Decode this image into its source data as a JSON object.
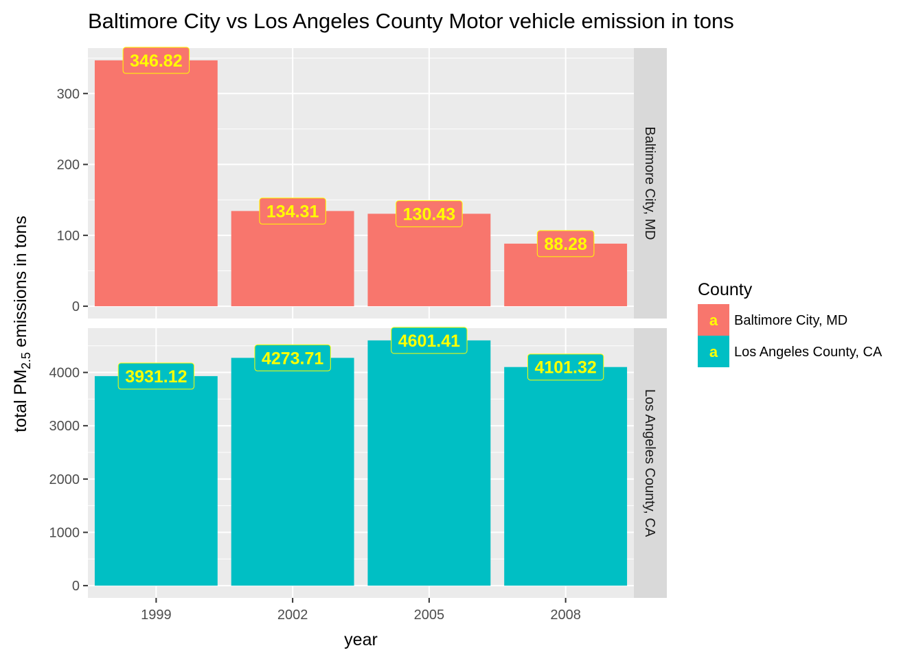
{
  "chart_data": {
    "type": "bar",
    "title": "Baltimore City vs Los Angeles County Motor vehicle emission in tons",
    "xlabel": "year",
    "ylabel": {
      "prefix": "total PM",
      "subscript": "2.5",
      "suffix": " emissions in tons"
    },
    "categories": [
      "1999",
      "2002",
      "2005",
      "2008"
    ],
    "legend": {
      "title": "County",
      "position": "right",
      "glyph": "a"
    },
    "grid": true,
    "panels": [
      {
        "name": "Baltimore City, MD",
        "color": "#F8766D",
        "values": [
          346.82,
          134.31,
          130.43,
          88.28
        ],
        "labels": [
          "346.82",
          "134.31",
          "130.43",
          "88.28"
        ],
        "ylim": [
          -17.34,
          364.16
        ],
        "yticks": [
          0,
          100,
          200,
          300
        ]
      },
      {
        "name": "Los Angeles County, CA",
        "color": "#00BFC4",
        "values": [
          3931.12,
          4273.71,
          4601.41,
          4101.32
        ],
        "labels": [
          "3931.12",
          "4273.71",
          "4601.41",
          "4101.32"
        ],
        "ylim": [
          -230.07,
          4831.48
        ],
        "yticks": [
          0,
          1000,
          2000,
          3000,
          4000
        ]
      }
    ]
  },
  "colors": {
    "panel_bg": "#EBEBEB",
    "strip_bg": "#D9D9D9",
    "label_text": "#FFFF00"
  }
}
